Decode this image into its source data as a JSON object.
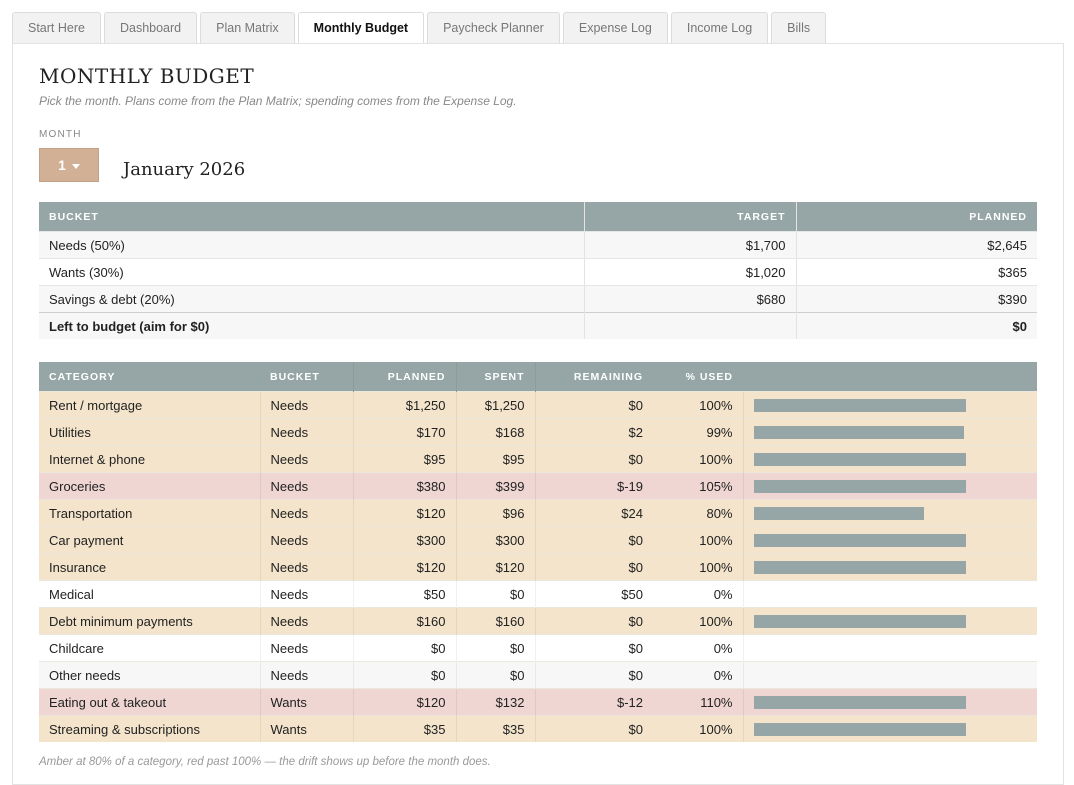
{
  "tabs": [
    "Start Here",
    "Dashboard",
    "Plan Matrix",
    "Monthly Budget",
    "Paycheck Planner",
    "Expense Log",
    "Income Log",
    "Bills"
  ],
  "active_tab": "Monthly Budget",
  "title": "MONTHLY BUDGET",
  "subtitle": "Pick the month. Plans come from the Plan Matrix; spending comes from the Expense Log.",
  "month_label": "MONTH",
  "month_value": "1",
  "month_name": "January 2026",
  "colors": {
    "header": "#96a5a5",
    "amber_row": "#f3e4cb",
    "red_row": "#efd6d2",
    "selector": "#d2b096"
  },
  "buckets": {
    "headers": [
      "BUCKET",
      "TARGET",
      "PLANNED"
    ],
    "rows": [
      {
        "bucket": "Needs (50%)",
        "target": "$1,700",
        "planned": "$2,645"
      },
      {
        "bucket": "Wants (30%)",
        "target": "$1,020",
        "planned": "$365"
      },
      {
        "bucket": "Savings & debt (20%)",
        "target": "$680",
        "planned": "$390"
      }
    ],
    "total": {
      "bucket": "Left to budget (aim for $0)",
      "target": "",
      "planned": "$0"
    }
  },
  "categories": {
    "headers": [
      "CATEGORY",
      "BUCKET",
      "PLANNED",
      "SPENT",
      "REMAINING",
      "% USED"
    ],
    "rows": [
      {
        "category": "Rent / mortgage",
        "bucket": "Needs",
        "planned": "$1,250",
        "spent": "$1,250",
        "remaining": "$0",
        "used": "100%",
        "pct": 1.0,
        "status": "amber"
      },
      {
        "category": "Utilities",
        "bucket": "Needs",
        "planned": "$170",
        "spent": "$168",
        "remaining": "$2",
        "used": "99%",
        "pct": 0.99,
        "status": "amber"
      },
      {
        "category": "Internet & phone",
        "bucket": "Needs",
        "planned": "$95",
        "spent": "$95",
        "remaining": "$0",
        "used": "100%",
        "pct": 1.0,
        "status": "amber"
      },
      {
        "category": "Groceries",
        "bucket": "Needs",
        "planned": "$380",
        "spent": "$399",
        "remaining": "$-19",
        "used": "105%",
        "pct": 1.05,
        "status": "red"
      },
      {
        "category": "Transportation",
        "bucket": "Needs",
        "planned": "$120",
        "spent": "$96",
        "remaining": "$24",
        "used": "80%",
        "pct": 0.8,
        "status": "amber"
      },
      {
        "category": "Car payment",
        "bucket": "Needs",
        "planned": "$300",
        "spent": "$300",
        "remaining": "$0",
        "used": "100%",
        "pct": 1.0,
        "status": "amber"
      },
      {
        "category": "Insurance",
        "bucket": "Needs",
        "planned": "$120",
        "spent": "$120",
        "remaining": "$0",
        "used": "100%",
        "pct": 1.0,
        "status": "amber"
      },
      {
        "category": "Medical",
        "bucket": "Needs",
        "planned": "$50",
        "spent": "$0",
        "remaining": "$50",
        "used": "0%",
        "pct": 0,
        "status": "plain"
      },
      {
        "category": "Debt minimum payments",
        "bucket": "Needs",
        "planned": "$160",
        "spent": "$160",
        "remaining": "$0",
        "used": "100%",
        "pct": 1.0,
        "status": "amber"
      },
      {
        "category": "Childcare",
        "bucket": "Needs",
        "planned": "$0",
        "spent": "$0",
        "remaining": "$0",
        "used": "0%",
        "pct": 0,
        "status": "plain"
      },
      {
        "category": "Other needs",
        "bucket": "Needs",
        "planned": "$0",
        "spent": "$0",
        "remaining": "$0",
        "used": "0%",
        "pct": 0,
        "status": "grey"
      },
      {
        "category": "Eating out & takeout",
        "bucket": "Wants",
        "planned": "$120",
        "spent": "$132",
        "remaining": "$-12",
        "used": "110%",
        "pct": 1.1,
        "status": "red"
      },
      {
        "category": "Streaming & subscriptions",
        "bucket": "Wants",
        "planned": "$35",
        "spent": "$35",
        "remaining": "$0",
        "used": "100%",
        "pct": 1.0,
        "status": "amber"
      }
    ]
  },
  "footer_note": "Amber at 80% of a category, red past 100% — the drift shows up before the month does."
}
